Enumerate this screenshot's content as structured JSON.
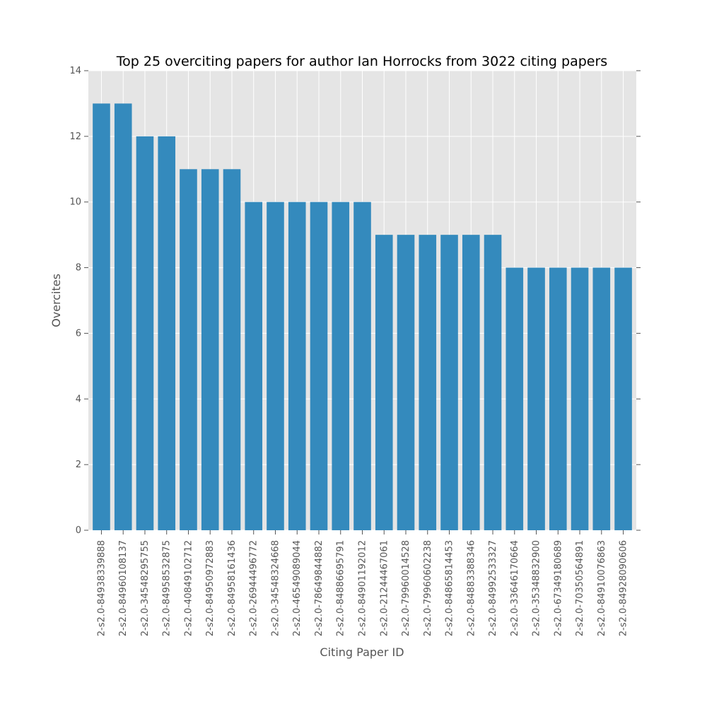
{
  "chart_data": {
    "type": "bar",
    "title": "Top 25 overciting papers for author Ian Horrocks from 3022 citing papers",
    "xlabel": "Citing Paper ID",
    "ylabel": "Overcites",
    "ylim": [
      0,
      14
    ],
    "yticks": [
      0,
      2,
      4,
      6,
      8,
      10,
      12,
      14
    ],
    "grid": true,
    "categories": [
      "2-s2.0-84938339888",
      "2-s2.0-84960108137",
      "2-s2.0-34548295755",
      "2-s2.0-84958532875",
      "2-s2.0-40849102712",
      "2-s2.0-84950972883",
      "2-s2.0-84958161436",
      "2-s2.0-26944496772",
      "2-s2.0-34548324668",
      "2-s2.0-46549089044",
      "2-s2.0-78649844882",
      "2-s2.0-84886695791",
      "2-s2.0-84901192012",
      "2-s2.0-21244467061",
      "2-s2.0-79960014528",
      "2-s2.0-79960602238",
      "2-s2.0-84865814453",
      "2-s2.0-84883388346",
      "2-s2.0-84992533327",
      "2-s2.0-33646170664",
      "2-s2.0-35348832900",
      "2-s2.0-67349180689",
      "2-s2.0-70350564891",
      "2-s2.0-84910076863",
      "2-s2.0-84928090606"
    ],
    "values": [
      13,
      13,
      12,
      12,
      11,
      11,
      11,
      10,
      10,
      10,
      10,
      10,
      10,
      9,
      9,
      9,
      9,
      9,
      9,
      8,
      8,
      8,
      8,
      8,
      8
    ],
    "colors": {
      "bar": "#348abd",
      "plot_bg": "#e5e5e5",
      "grid": "#ffffff",
      "text": "#555555"
    }
  }
}
